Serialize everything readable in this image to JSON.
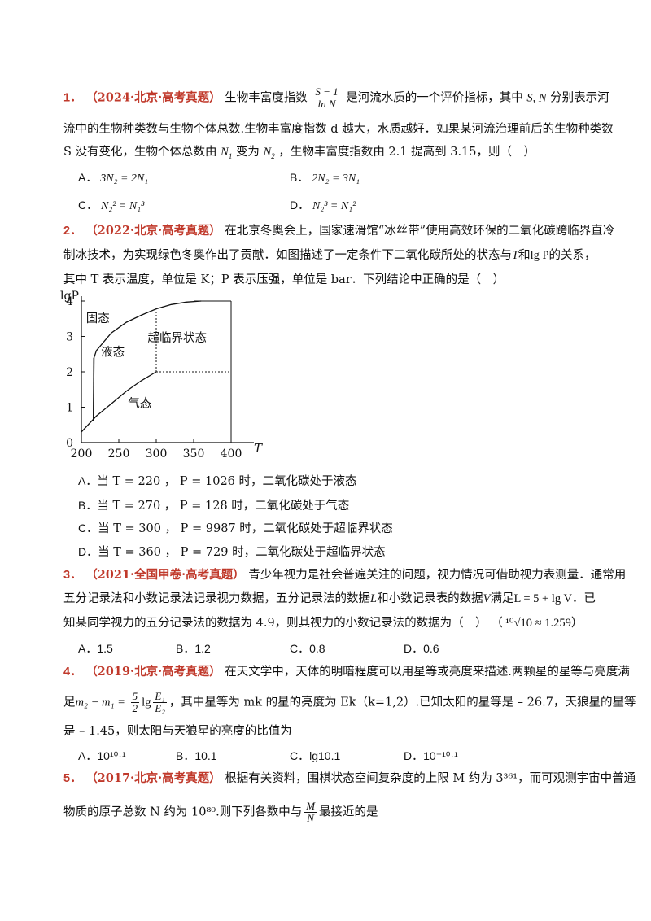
{
  "q1": {
    "num": "1．",
    "src": "（2024·北京·高考真题）",
    "l1a": "生物丰富度指数",
    "frac_num": "S − 1",
    "frac_den": "ln N",
    "l1b": "是河流水质的一个评价指标，其中",
    "l1c": "S, N",
    "l1d": "分别表示河",
    "l2": "流中的生物种类数与生物个体总数.生物丰富度指数 d 越大，水质越好．如果某河流治理前后的生物种类数",
    "l3a": "S 没有变化，生物个体总数由",
    "l3b": "变为",
    "l3c": "，生物丰富度指数由 2.1 提高到 3.15，则（　）",
    "options": [
      {
        "label": "A．",
        "text": "3N₂ = 2N₁"
      },
      {
        "label": "B．",
        "text": "2N₂ = 3N₁"
      },
      {
        "label": "C．",
        "text": "N₂² = N₁³"
      },
      {
        "label": "D．",
        "text": "N₂³ = N₁²"
      }
    ]
  },
  "q2": {
    "num": "2．",
    "src": "（2022·北京·高考真题）",
    "l1": "在北京冬奥会上，国家速滑馆“冰丝带”使用高效环保的二氧化碳跨临界直冷",
    "l2a": "制冰技术，为实现绿色冬奥作出了贡献．如图描述了一定条件下二氧化碳所处的状态与",
    "l2b": "T",
    "l2c": "和",
    "l2d": "lg P",
    "l2e": "的关系，",
    "l3": "其中 T 表示温度，单位是 K；P 表示压强，单位是 bar．下列结论中正确的是（　）",
    "options": [
      {
        "label": "A．",
        "text": "当 T = 220 ， P = 1026 时，二氧化碳处于液态"
      },
      {
        "label": "B．",
        "text": "当 T = 270 ， P = 128 时，二氧化碳处于气态"
      },
      {
        "label": "C．",
        "text": "当 T = 300 ， P = 9987 时，二氧化碳处于超临界状态"
      },
      {
        "label": "D．",
        "text": "当 T = 360 ， P = 729 时，二氧化碳处于超临界状态"
      }
    ]
  },
  "chart_data": {
    "type": "line",
    "title": "",
    "xlabel": "T",
    "ylabel": "lgP",
    "xlim": [
      200,
      400
    ],
    "ylim": [
      0,
      4
    ],
    "x_ticks": [
      200,
      250,
      300,
      350,
      400
    ],
    "y_ticks": [
      0,
      1,
      2,
      3,
      4
    ],
    "region_labels": [
      "固态",
      "液态",
      "超临界状态",
      "气态"
    ],
    "series": [
      {
        "x": [
          200,
          220,
          240,
          260,
          280,
          300
        ],
        "y": [
          0.3,
          0.75,
          1.1,
          1.45,
          1.75,
          2.0
        ]
      },
      {
        "x": [
          216,
          217,
          220,
          240,
          260,
          280,
          300,
          320,
          340,
          360
        ],
        "y": [
          0.6,
          2.4,
          2.6,
          3.1,
          3.4,
          3.6,
          3.78,
          3.9,
          3.97,
          4.0
        ]
      },
      {
        "x": [
          216,
          216.5
        ],
        "y": [
          0.6,
          2.4
        ]
      }
    ],
    "reference_lines": [
      {
        "x": [
          300,
          400
        ],
        "y": [
          2,
          2
        ],
        "style": "dashed"
      },
      {
        "x": [
          300,
          300
        ],
        "y": [
          2,
          3.75
        ],
        "style": "dashed"
      },
      {
        "x": [
          350,
          400
        ],
        "y": [
          4,
          4
        ],
        "style": "solid"
      },
      {
        "x": [
          400,
          400
        ],
        "y": [
          0,
          4
        ],
        "style": "solid"
      }
    ]
  },
  "q3": {
    "num": "3．",
    "src": "（2021·全国甲卷·高考真题）",
    "l1": "青少年视力是社会普遍关注的问题，视力情况可借助视力表测量．通常用",
    "l2a": "五分记录法和小数记录法记录视力数据，五分记录法的数据",
    "l2b": "L",
    "l2c": "和小数记录表的数据",
    "l2d": "V",
    "l2e": "满足",
    "l2f": "L = 5 + lg V",
    "l2g": "．已",
    "l3a": "知某同学视力的五分记录法的数据为 4.9，则其视力的小数记录法的数据为（　）",
    "l3b": "（ ¹⁰√10 ≈ 1.259）",
    "options": [
      {
        "label": "A．",
        "text": "1.5"
      },
      {
        "label": "B．",
        "text": "1.2"
      },
      {
        "label": "C．",
        "text": "0.8"
      },
      {
        "label": "D．",
        "text": "0.6"
      }
    ]
  },
  "q4": {
    "num": "4．",
    "src": "（2019·北京·高考真题）",
    "l1": "在天文学中，天体的明暗程度可以用星等或亮度来描述.两颗星的星等与亮度满",
    "l2a": "足",
    "l2b": "m₂ − m₁ = ",
    "l2c": "lg",
    "l2d": "，其中星等为 mk 的星的亮度为 Ek（k=1,2）.已知太阳的星等是 – 26.7，天狼星的星等",
    "frac1_num": "5",
    "frac1_den": "2",
    "frac2_num": "E₁",
    "frac2_den": "E₂",
    "l3": "是 – 1.45，则太阳与天狼星的亮度的比值为",
    "options": [
      {
        "label": "A．",
        "text": "10¹⁰·¹"
      },
      {
        "label": "B．",
        "text": "10.1"
      },
      {
        "label": "C．",
        "text": "lg10.1"
      },
      {
        "label": "D．",
        "text": "10⁻¹⁰·¹"
      }
    ]
  },
  "q5": {
    "num": "5．",
    "src": "（2017·北京·高考真题）",
    "l1": "根据有关资料，围棋状态空间复杂度的上限 M 约为 3³⁶¹，而可观测宇宙中普通",
    "l2a": "物质的原子总数 N 约为 10⁸⁰.则下列各数中与",
    "frac_num": "M",
    "frac_den": "N",
    "l2b": "最接近的是"
  }
}
